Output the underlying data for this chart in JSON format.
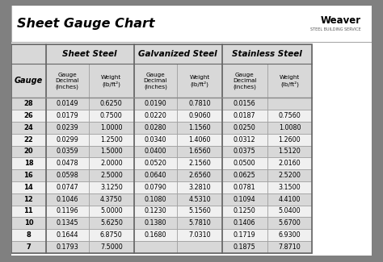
{
  "title": "Sheet Gauge Chart",
  "bg_outer": "#808080",
  "bg_white": "#ffffff",
  "bg_table_white": "#ffffff",
  "header_bg": "#d8d8d8",
  "row_odd": "#d8d8d8",
  "row_even": "#f0f0f0",
  "gauges": [
    28,
    26,
    24,
    22,
    20,
    18,
    16,
    14,
    12,
    11,
    10,
    8,
    7
  ],
  "sheet_steel": [
    [
      "0.0149",
      "0.6250"
    ],
    [
      "0.0179",
      "0.7500"
    ],
    [
      "0.0239",
      "1.0000"
    ],
    [
      "0.0299",
      "1.2500"
    ],
    [
      "0.0359",
      "1.5000"
    ],
    [
      "0.0478",
      "2.0000"
    ],
    [
      "0.0598",
      "2.5000"
    ],
    [
      "0.0747",
      "3.1250"
    ],
    [
      "0.1046",
      "4.3750"
    ],
    [
      "0.1196",
      "5.0000"
    ],
    [
      "0.1345",
      "5.6250"
    ],
    [
      "0.1644",
      "6.8750"
    ],
    [
      "0.1793",
      "7.5000"
    ]
  ],
  "galvanized_steel": [
    [
      "0.0190",
      "0.7810"
    ],
    [
      "0.0220",
      "0.9060"
    ],
    [
      "0.0280",
      "1.1560"
    ],
    [
      "0.0340",
      "1.4060"
    ],
    [
      "0.0400",
      "1.6560"
    ],
    [
      "0.0520",
      "2.1560"
    ],
    [
      "0.0640",
      "2.6560"
    ],
    [
      "0.0790",
      "3.2810"
    ],
    [
      "0.1080",
      "4.5310"
    ],
    [
      "0.1230",
      "5.1560"
    ],
    [
      "0.1380",
      "5.7810"
    ],
    [
      "0.1680",
      "7.0310"
    ],
    [
      "",
      ""
    ]
  ],
  "stainless_steel": [
    [
      "0.0156",
      ""
    ],
    [
      "0.0187",
      "0.7560"
    ],
    [
      "0.0250",
      "1.0080"
    ],
    [
      "0.0312",
      "1.2600"
    ],
    [
      "0.0375",
      "1.5120"
    ],
    [
      "0.0500",
      "2.0160"
    ],
    [
      "0.0625",
      "2.5200"
    ],
    [
      "0.0781",
      "3.1500"
    ],
    [
      "0.1094",
      "4.4100"
    ],
    [
      "0.1250",
      "5.0400"
    ],
    [
      "0.1406",
      "5.6700"
    ],
    [
      "0.1719",
      "6.9300"
    ],
    [
      "0.1875",
      "7.8710"
    ]
  ]
}
